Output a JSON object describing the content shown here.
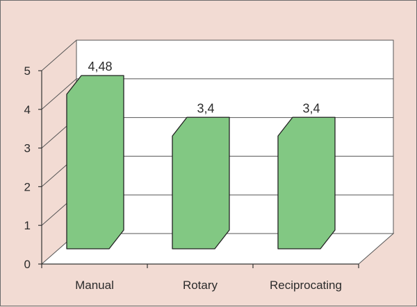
{
  "chart_data": {
    "type": "bar",
    "categories": [
      "Manual",
      "Rotary",
      "Reciprocating"
    ],
    "values": [
      4.48,
      3.4,
      3.4
    ],
    "value_labels": [
      "4,48",
      "3,4",
      "3,4"
    ],
    "y_ticks": [
      0,
      1,
      2,
      3,
      4,
      5
    ],
    "ylim": [
      0,
      5
    ],
    "title": "",
    "xlabel": "",
    "ylabel": "",
    "grid": true,
    "three_d": true,
    "bar_color": "#82c883",
    "bar_stroke": "#222222",
    "background_color": "#f2dbd3",
    "plot_color": "#ffffff"
  }
}
